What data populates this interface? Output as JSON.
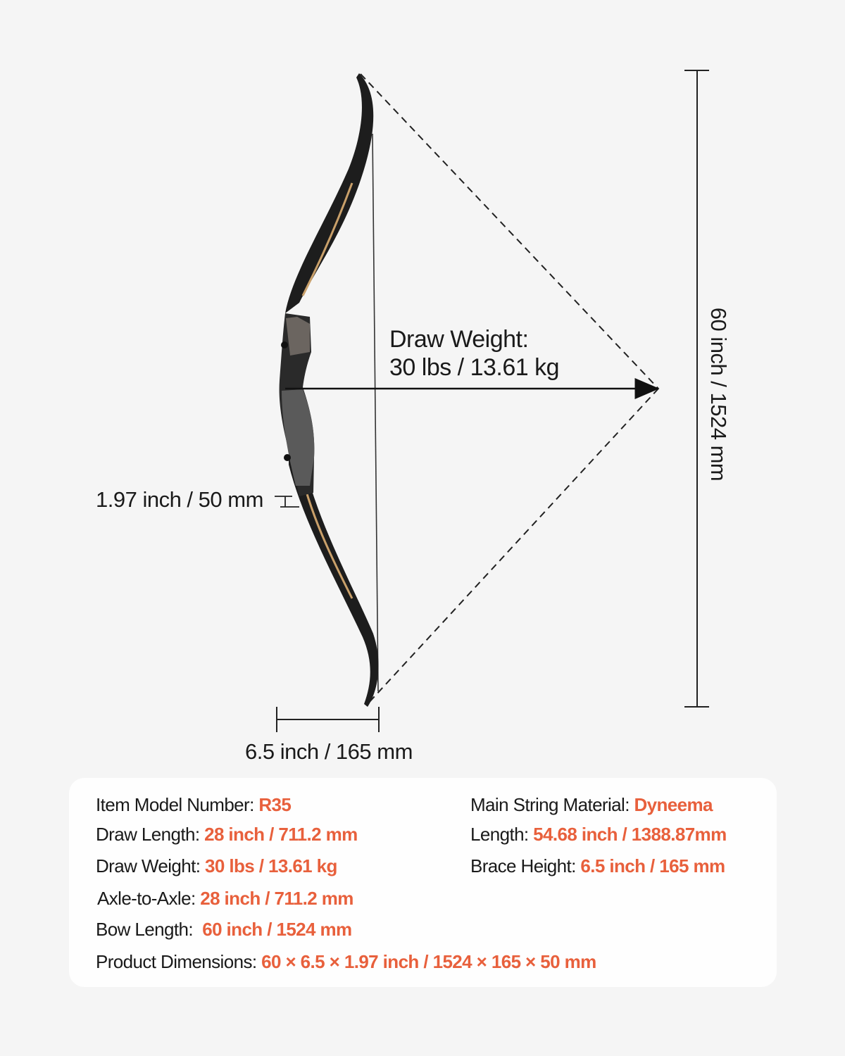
{
  "colors": {
    "accent": "#e8603c",
    "background": "#f5f5f5",
    "text": "#1a1a1a"
  },
  "diagram": {
    "draw_weight_label": "Draw Weight:",
    "draw_weight_value": "30 lbs / 13.61 kg",
    "height_dimension": "60 inch / 1524 mm",
    "grip_dimension": "1.97 inch / 50 mm",
    "brace_dimension": "6.5 inch / 165 mm"
  },
  "specs": [
    {
      "label": "Item Model Number: ",
      "value": "R35"
    },
    {
      "label": "Draw Length: ",
      "value": "28 inch / 711.2 mm"
    },
    {
      "label": "Draw Weight: ",
      "value": "30 lbs / 13.61 kg"
    },
    {
      "label": "Axle-to-Axle: ",
      "value": "28 inch / 711.2 mm"
    },
    {
      "label": "Bow Length:  ",
      "value": "60 inch / 1524 mm"
    },
    {
      "label": "Product Dimensions: ",
      "value": "60 × 6.5 × 1.97 inch / 1524 × 165 × 50 mm"
    },
    {
      "label": "Main String Material: ",
      "value": "Dyneema"
    },
    {
      "label": "Length: ",
      "value": "54.68 inch / 1388.87mm"
    },
    {
      "label": "Brace Height: ",
      "value": "6.5 inch / 165 mm"
    }
  ]
}
